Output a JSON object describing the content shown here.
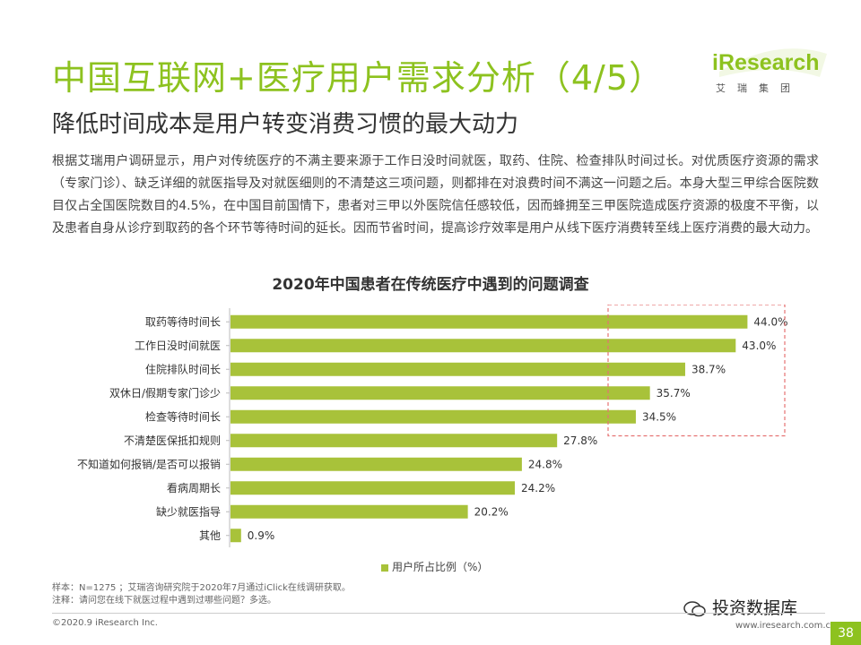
{
  "header": {
    "title": "中国互联网+医疗用户需求分析（4/5）",
    "subtitle": "降低时间成本是用户转变消费习惯的最大动力",
    "logo_text": "iResearch",
    "logo_sub": "艾瑞集团"
  },
  "intro": "根据艾瑞用户调研显示，用户对传统医疗的不满主要来源于工作日没时间就医，取药、住院、检查排队时间过长。对优质医疗资源的需求（专家门诊）、缺乏详细的就医指导及对就医细则的不清楚这三项问题，则都排在对浪费时间不满这一问题之后。本身大型三甲综合医院数目仅占全国医院数目的4.5%，在中国目前国情下，患者对三甲以外医院信任感较低，因而蜂拥至三甲医院造成医疗资源的极度不平衡，以及患者自身从诊疗到取药的各个环节等待时间的延长。因而节省时间，提高诊疗效率是用户从线下医疗消费转至线上医疗消费的最大动力。",
  "chart_data": {
    "type": "bar",
    "orientation": "horizontal",
    "title": "2020年中国患者在传统医疗中遇到的问题调查",
    "categories": [
      "取药等待时间长",
      "工作日没时间就医",
      "住院排队时间长",
      "双休日/假期专家门诊少",
      "检查等待时间长",
      "不清楚医保抵扣规则",
      "不知道如何报销/是否可以报销",
      "看病周期长",
      "缺少就医指导",
      "其他"
    ],
    "series": [
      {
        "name": "用户所占比例（%）",
        "values": [
          44.0,
          43.0,
          38.7,
          35.7,
          34.5,
          27.8,
          24.8,
          24.2,
          20.2,
          0.9
        ]
      }
    ],
    "data_labels": [
      "44.0%",
      "43.0%",
      "38.7%",
      "35.7%",
      "34.5%",
      "27.8%",
      "24.8%",
      "24.2%",
      "20.2%",
      "0.9%"
    ],
    "xlim": [
      0,
      50
    ],
    "bar_color": "#a8c23a",
    "highlight": "top-5 labels boxed with dashed red border",
    "highlight_color": "#e57373",
    "legend": "bottom-center",
    "grid": false
  },
  "notes": {
    "sample": "样本：N=1275 ；艾瑞咨询研究院于2020年7月通过iClick在线调研获取。",
    "note": "注释：请问您在线下就医过程中遇到过哪些问题？多选。"
  },
  "footer": {
    "copyright": "©2020.9 iResearch Inc.",
    "site": "www.iresearch.com.cn",
    "page": "38",
    "watermark": "投资数据库"
  }
}
